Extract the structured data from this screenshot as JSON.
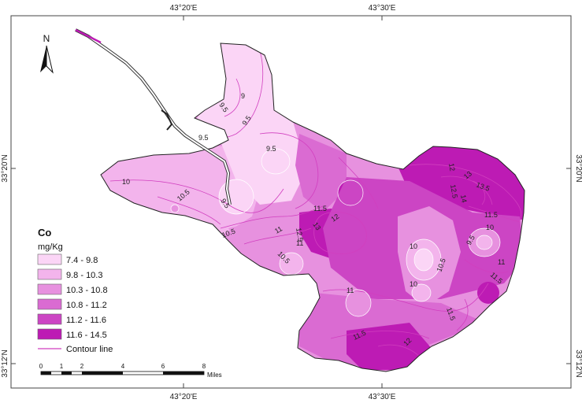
{
  "map": {
    "graticule": {
      "top": [
        "43°20'E",
        "43°30'E"
      ],
      "bottom": [
        "43°20'E",
        "43°30'E"
      ],
      "left": [
        "33°20'N",
        "33°12'N"
      ],
      "right": [
        "33°20'N",
        "33°12'N"
      ]
    },
    "north_arrow": {
      "label": "N"
    },
    "legend": {
      "title": "Co",
      "unit": "mg/Kg",
      "classes": [
        {
          "label": "7.4 - 9.8",
          "color": "#fbd5f6"
        },
        {
          "label": "9.8 - 10.3",
          "color": "#f3b4ec"
        },
        {
          "label": "10.3 - 10.8",
          "color": "#e791df"
        },
        {
          "label": "10.8 - 11.2",
          "color": "#da6bd2"
        },
        {
          "label": "11.2 - 11.6",
          "color": "#cc45c4"
        },
        {
          "label": "11.6 - 14.5",
          "color": "#bd1bb4"
        }
      ],
      "contour": {
        "label": "Contour line",
        "color": "#d13fbf"
      }
    },
    "scale_bar": {
      "ticks": [
        "0",
        "1",
        "2",
        "4",
        "6",
        "8"
      ],
      "unit": "Miles"
    },
    "contour_labels": [
      "9",
      "9.5",
      "9.5",
      "9.5",
      "9.5",
      "10",
      "10.5",
      "9.5",
      "10.5",
      "11",
      "11.5",
      "12",
      "13",
      "12.5",
      "10.5",
      "11",
      "11",
      "11.5",
      "13",
      "12",
      "12.5",
      "13.5",
      "14",
      "11.5",
      "10",
      "9.5",
      "10",
      "10.5",
      "11",
      "10",
      "11.5",
      "11.5",
      "12"
    ]
  }
}
